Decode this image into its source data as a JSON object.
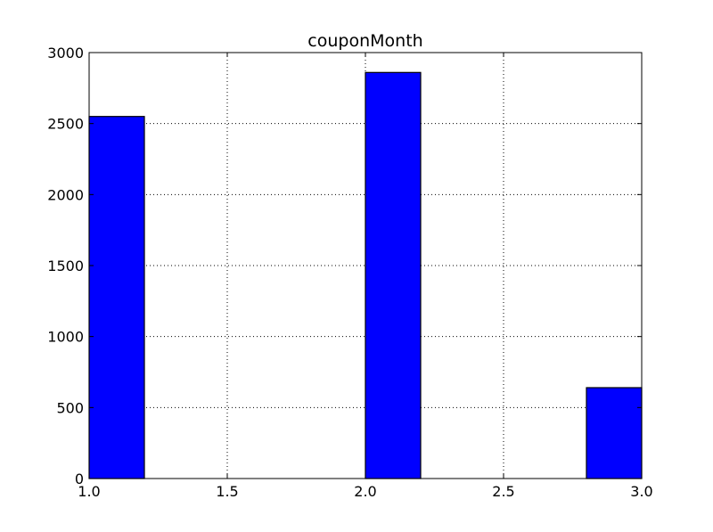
{
  "chart_data": {
    "type": "bar",
    "title": "couponMonth",
    "xlabel": "",
    "ylabel": "",
    "xlim": [
      1.0,
      3.0
    ],
    "ylim": [
      0,
      3000
    ],
    "xticks": [
      1.0,
      1.5,
      2.0,
      2.5,
      3.0
    ],
    "xtick_labels": [
      "1.0",
      "1.5",
      "2.0",
      "2.5",
      "3.0"
    ],
    "yticks": [
      0,
      500,
      1000,
      1500,
      2000,
      2500,
      3000
    ],
    "ytick_labels": [
      "0",
      "500",
      "1000",
      "1500",
      "2000",
      "2500",
      "3000"
    ],
    "grid": true,
    "bars": [
      {
        "x_start": 1.0,
        "x_end": 1.2,
        "value": 2550
      },
      {
        "x_start": 1.2,
        "x_end": 1.4,
        "value": 0
      },
      {
        "x_start": 1.4,
        "x_end": 1.6,
        "value": 0
      },
      {
        "x_start": 1.6,
        "x_end": 1.8,
        "value": 0
      },
      {
        "x_start": 1.8,
        "x_end": 2.0,
        "value": 0
      },
      {
        "x_start": 2.0,
        "x_end": 2.2,
        "value": 2860
      },
      {
        "x_start": 2.2,
        "x_end": 2.4,
        "value": 0
      },
      {
        "x_start": 2.4,
        "x_end": 2.6,
        "value": 0
      },
      {
        "x_start": 2.6,
        "x_end": 2.8,
        "value": 0
      },
      {
        "x_start": 2.8,
        "x_end": 3.0,
        "value": 640
      }
    ],
    "bar_color": "#0000ff",
    "edge_color": "#000000",
    "grid_color": "#000000",
    "axes_color": "#000000"
  }
}
